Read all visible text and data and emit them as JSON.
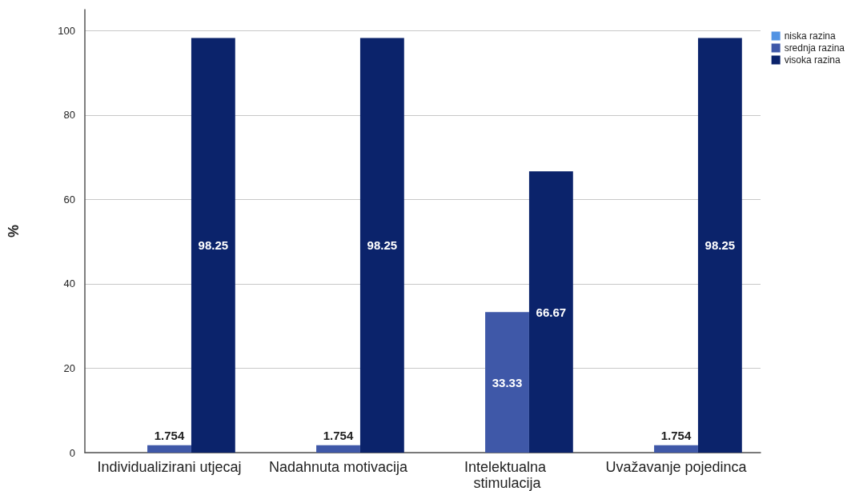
{
  "chart_data": {
    "type": "bar",
    "categories": [
      "Individualizirani utjecaj",
      "Nadahnuta motivacija",
      "Intelektualna stimulacija",
      "Uvažavanje pojedinca"
    ],
    "series": [
      {
        "name": "niska razina",
        "color": "#5293e3",
        "values": [
          null,
          null,
          null,
          null
        ]
      },
      {
        "name": "srednja razina",
        "color": "#3f58a8",
        "values": [
          1.754,
          1.754,
          33.33,
          1.754
        ]
      },
      {
        "name": "visoka razina",
        "color": "#0b236b",
        "values": [
          98.25,
          98.25,
          66.67,
          98.25
        ]
      }
    ],
    "ylabel": "%",
    "ylim": [
      0,
      105
    ],
    "yticks": [
      0,
      20,
      40,
      60,
      80,
      100
    ],
    "grid": "y",
    "legend": "top right",
    "data_labels": true
  }
}
